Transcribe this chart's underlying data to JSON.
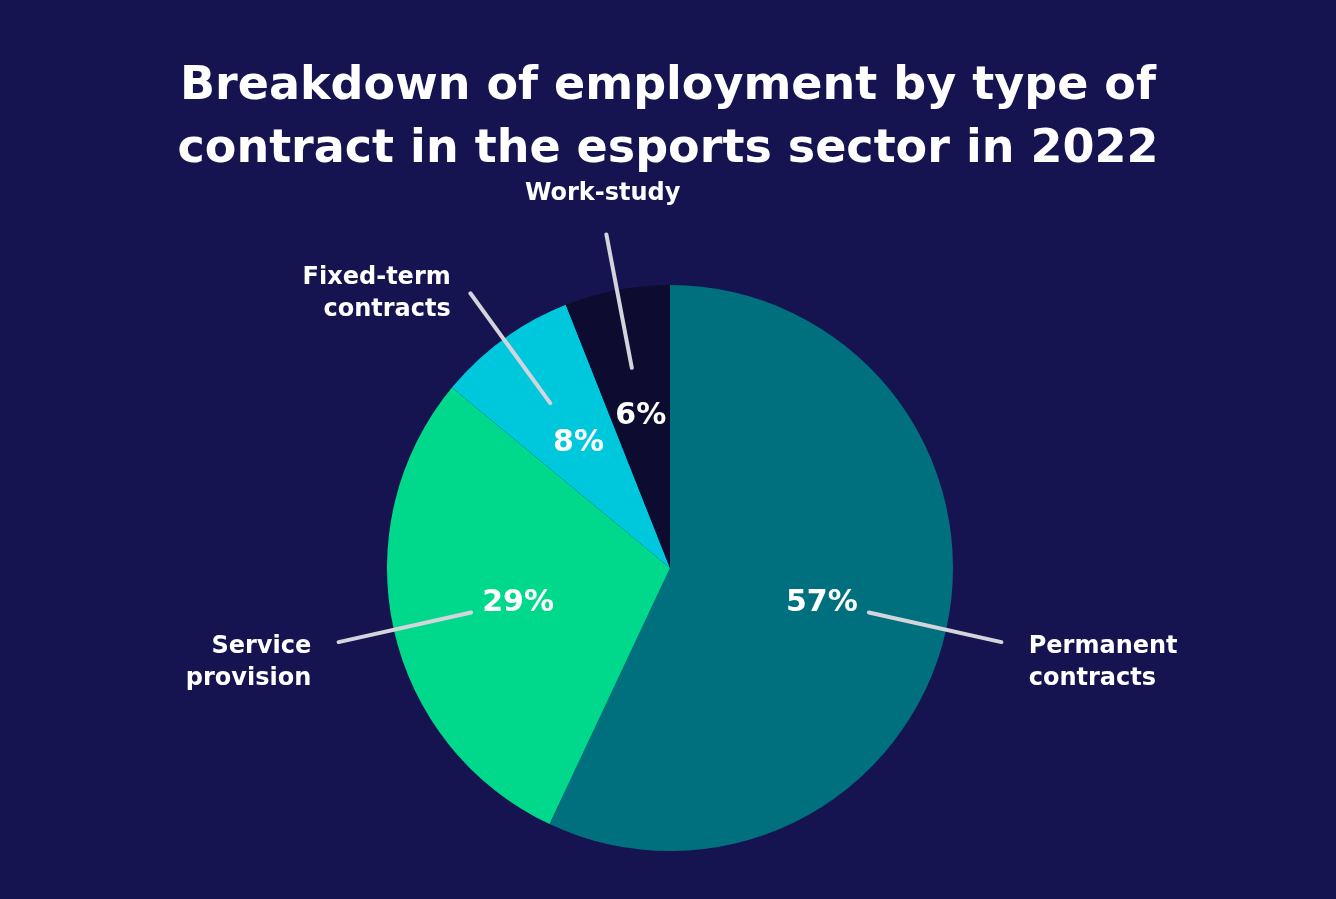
{
  "chart_data": {
    "type": "pie",
    "title": "Breakdown of employment by type of contract in the esports sector in 2022",
    "categories": [
      "Permanent contracts",
      "Service provision",
      "Fixed-term contracts",
      "Work-study"
    ],
    "values": [
      57,
      29,
      8,
      6
    ],
    "colors": [
      "#00707f",
      "#00d98b",
      "#00c8dc",
      "#0d0c30"
    ],
    "value_labels": [
      "57%",
      "29%",
      "8%",
      "6%"
    ]
  }
}
